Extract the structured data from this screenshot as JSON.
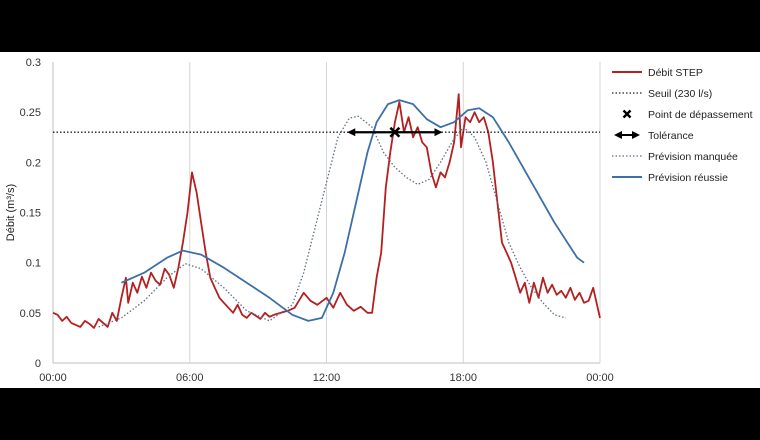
{
  "chart_data": {
    "type": "line",
    "ylabel": "Débit (m³/s)",
    "ylim": [
      0,
      0.3
    ],
    "xlim": [
      0,
      24
    ],
    "grid": true,
    "legend_position": "right",
    "x_ticks": [
      {
        "value": 0,
        "label": "00:00"
      },
      {
        "value": 6,
        "label": "06:00"
      },
      {
        "value": 12,
        "label": "12:00"
      },
      {
        "value": 18,
        "label": "18:00"
      },
      {
        "value": 24,
        "label": "00:00"
      }
    ],
    "y_ticks": [
      {
        "value": 0,
        "label": "0"
      },
      {
        "value": 0.05,
        "label": "0.05"
      },
      {
        "value": 0.1,
        "label": "0.1"
      },
      {
        "value": 0.15,
        "label": "0.15"
      },
      {
        "value": 0.2,
        "label": "0.2"
      },
      {
        "value": 0.25,
        "label": "0.25"
      },
      {
        "value": 0.3,
        "label": "0.3"
      }
    ],
    "series": [
      {
        "name": "Débit STEP",
        "color": "#b3201f",
        "style": "solid",
        "points": [
          [
            0,
            0.05
          ],
          [
            0.2,
            0.048
          ],
          [
            0.4,
            0.042
          ],
          [
            0.6,
            0.046
          ],
          [
            0.8,
            0.04
          ],
          [
            1,
            0.038
          ],
          [
            1.2,
            0.036
          ],
          [
            1.4,
            0.042
          ],
          [
            1.6,
            0.039
          ],
          [
            1.8,
            0.035
          ],
          [
            2,
            0.044
          ],
          [
            2.2,
            0.04
          ],
          [
            2.4,
            0.036
          ],
          [
            2.6,
            0.05
          ],
          [
            2.8,
            0.042
          ],
          [
            3,
            0.065
          ],
          [
            3.2,
            0.085
          ],
          [
            3.3,
            0.06
          ],
          [
            3.5,
            0.08
          ],
          [
            3.7,
            0.07
          ],
          [
            3.9,
            0.086
          ],
          [
            4.1,
            0.075
          ],
          [
            4.3,
            0.09
          ],
          [
            4.5,
            0.082
          ],
          [
            4.7,
            0.078
          ],
          [
            4.9,
            0.094
          ],
          [
            5.1,
            0.088
          ],
          [
            5.3,
            0.075
          ],
          [
            5.5,
            0.095
          ],
          [
            5.7,
            0.12
          ],
          [
            5.9,
            0.15
          ],
          [
            6.1,
            0.19
          ],
          [
            6.3,
            0.17
          ],
          [
            6.5,
            0.14
          ],
          [
            6.7,
            0.11
          ],
          [
            6.9,
            0.085
          ],
          [
            7.1,
            0.075
          ],
          [
            7.3,
            0.065
          ],
          [
            7.5,
            0.06
          ],
          [
            7.7,
            0.055
          ],
          [
            7.9,
            0.05
          ],
          [
            8.1,
            0.058
          ],
          [
            8.3,
            0.048
          ],
          [
            8.5,
            0.045
          ],
          [
            8.7,
            0.05
          ],
          [
            8.9,
            0.047
          ],
          [
            9.1,
            0.044
          ],
          [
            9.3,
            0.05
          ],
          [
            9.5,
            0.046
          ],
          [
            9.7,
            0.048
          ],
          [
            10,
            0.05
          ],
          [
            10.3,
            0.052
          ],
          [
            10.6,
            0.055
          ],
          [
            11,
            0.07
          ],
          [
            11.3,
            0.062
          ],
          [
            11.6,
            0.058
          ],
          [
            12,
            0.065
          ],
          [
            12.3,
            0.055
          ],
          [
            12.6,
            0.07
          ],
          [
            12.9,
            0.058
          ],
          [
            13.2,
            0.052
          ],
          [
            13.5,
            0.056
          ],
          [
            13.8,
            0.05
          ],
          [
            14,
            0.05
          ],
          [
            14.2,
            0.085
          ],
          [
            14.4,
            0.11
          ],
          [
            14.6,
            0.175
          ],
          [
            14.8,
            0.21
          ],
          [
            15.0,
            0.24
          ],
          [
            15.2,
            0.26
          ],
          [
            15.4,
            0.23
          ],
          [
            15.6,
            0.245
          ],
          [
            15.8,
            0.225
          ],
          [
            16,
            0.235
          ],
          [
            16.2,
            0.22
          ],
          [
            16.4,
            0.215
          ],
          [
            16.6,
            0.19
          ],
          [
            16.8,
            0.175
          ],
          [
            17,
            0.19
          ],
          [
            17.2,
            0.185
          ],
          [
            17.4,
            0.2
          ],
          [
            17.6,
            0.22
          ],
          [
            17.8,
            0.268
          ],
          [
            17.9,
            0.215
          ],
          [
            18.1,
            0.245
          ],
          [
            18.3,
            0.24
          ],
          [
            18.5,
            0.25
          ],
          [
            18.7,
            0.24
          ],
          [
            18.9,
            0.245
          ],
          [
            19.1,
            0.23
          ],
          [
            19.3,
            0.2
          ],
          [
            19.5,
            0.16
          ],
          [
            19.7,
            0.12
          ],
          [
            19.9,
            0.11
          ],
          [
            20.1,
            0.1
          ],
          [
            20.3,
            0.085
          ],
          [
            20.5,
            0.07
          ],
          [
            20.7,
            0.08
          ],
          [
            20.9,
            0.06
          ],
          [
            21.1,
            0.08
          ],
          [
            21.3,
            0.065
          ],
          [
            21.5,
            0.085
          ],
          [
            21.7,
            0.07
          ],
          [
            21.9,
            0.078
          ],
          [
            22.1,
            0.068
          ],
          [
            22.3,
            0.072
          ],
          [
            22.5,
            0.065
          ],
          [
            22.7,
            0.075
          ],
          [
            22.9,
            0.063
          ],
          [
            23.1,
            0.07
          ],
          [
            23.3,
            0.06
          ],
          [
            23.5,
            0.062
          ],
          [
            23.7,
            0.075
          ],
          [
            23.9,
            0.055
          ],
          [
            24,
            0.045
          ]
        ]
      },
      {
        "name": "Seuil (230 l/s)",
        "color": "#222222",
        "style": "dotted",
        "points": [
          [
            0,
            0.23
          ],
          [
            24,
            0.23
          ]
        ]
      },
      {
        "name": "Prévision manquée",
        "color": "#5f6f85",
        "style": "dotted",
        "points": [
          [
            2,
            0.036
          ],
          [
            3,
            0.045
          ],
          [
            4,
            0.062
          ],
          [
            5,
            0.085
          ],
          [
            5.8,
            0.099
          ],
          [
            6.5,
            0.094
          ],
          [
            7.5,
            0.075
          ],
          [
            8.5,
            0.052
          ],
          [
            9.5,
            0.042
          ],
          [
            10.5,
            0.058
          ],
          [
            11,
            0.09
          ],
          [
            11.5,
            0.135
          ],
          [
            12,
            0.18
          ],
          [
            12.5,
            0.225
          ],
          [
            13,
            0.244
          ],
          [
            13.4,
            0.246
          ],
          [
            14,
            0.235
          ],
          [
            14.5,
            0.21
          ],
          [
            15,
            0.195
          ],
          [
            15.5,
            0.185
          ],
          [
            16,
            0.178
          ],
          [
            16.5,
            0.183
          ],
          [
            17,
            0.2
          ],
          [
            17.5,
            0.22
          ],
          [
            18,
            0.235
          ],
          [
            18.5,
            0.225
          ],
          [
            19,
            0.2
          ],
          [
            19.5,
            0.16
          ],
          [
            20,
            0.12
          ],
          [
            20.5,
            0.095
          ],
          [
            21,
            0.075
          ],
          [
            21.5,
            0.06
          ],
          [
            22,
            0.048
          ],
          [
            22.5,
            0.045
          ]
        ]
      },
      {
        "name": "Prévision réussie",
        "color": "#3e6fa6",
        "style": "solid",
        "points": [
          [
            3,
            0.08
          ],
          [
            4,
            0.09
          ],
          [
            5,
            0.105
          ],
          [
            5.7,
            0.112
          ],
          [
            6.5,
            0.108
          ],
          [
            7.5,
            0.095
          ],
          [
            8.5,
            0.08
          ],
          [
            9.5,
            0.065
          ],
          [
            10.5,
            0.048
          ],
          [
            11.2,
            0.042
          ],
          [
            11.8,
            0.045
          ],
          [
            12.3,
            0.07
          ],
          [
            12.8,
            0.11
          ],
          [
            13.3,
            0.16
          ],
          [
            13.8,
            0.21
          ],
          [
            14.2,
            0.24
          ],
          [
            14.7,
            0.258
          ],
          [
            15.2,
            0.262
          ],
          [
            15.8,
            0.258
          ],
          [
            16.4,
            0.243
          ],
          [
            17,
            0.235
          ],
          [
            17.6,
            0.24
          ],
          [
            18.2,
            0.252
          ],
          [
            18.7,
            0.254
          ],
          [
            19.3,
            0.245
          ],
          [
            20,
            0.22
          ],
          [
            21,
            0.18
          ],
          [
            22,
            0.14
          ],
          [
            23,
            0.105
          ],
          [
            23.3,
            0.1
          ]
        ]
      }
    ],
    "markers": [
      {
        "name": "Point de dépassement",
        "x": 15.0,
        "y": 0.23,
        "symbol": "x"
      },
      {
        "name": "Tolérance",
        "x_start": 13.0,
        "x_end": 17.0,
        "y": 0.23,
        "symbol": "double-arrow"
      }
    ],
    "legend": [
      {
        "label": "Débit STEP",
        "kind": "line",
        "color": "#b3201f",
        "style": "solid"
      },
      {
        "label": "Seuil (230 l/s)",
        "kind": "line",
        "color": "#222222",
        "style": "dotted"
      },
      {
        "label": "Point de dépassement",
        "kind": "x",
        "color": "#000000"
      },
      {
        "label": "Tolérance",
        "kind": "double-arrow",
        "color": "#000000"
      },
      {
        "label": "Prévision manquée",
        "kind": "line",
        "color": "#5f6f85",
        "style": "dotted"
      },
      {
        "label": "Prévision réussie",
        "kind": "line",
        "color": "#3e6fa6",
        "style": "solid"
      }
    ]
  }
}
